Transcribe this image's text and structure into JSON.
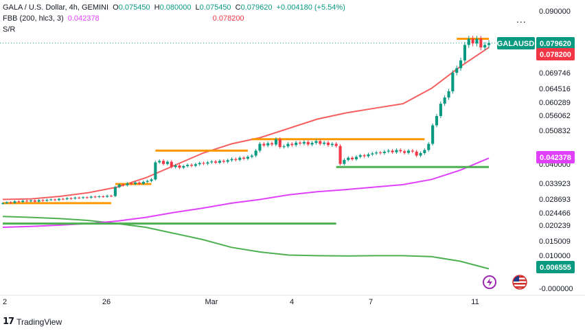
{
  "legend": {
    "line1": {
      "symbol": "GALA / U.S. Dollar, 4h, GEMINI",
      "o_label": "O",
      "o": "0.075450",
      "h_label": "H",
      "h": "0.080000",
      "l_label": "L",
      "l": "0.075450",
      "c_label": "C",
      "c": "0.079620",
      "change": "+0.004180 (+5.54%)"
    },
    "line2": {
      "name": "FBB (200, hlc3, 3)",
      "value1": "0.042378",
      "value2": "0.078200"
    },
    "line3": {
      "name": "S/R"
    }
  },
  "more_label": "...",
  "footer": {
    "logo": "17",
    "brand": "TradingView"
  },
  "colors": {
    "up": "#089981",
    "down": "#f23645",
    "sr_orange": "#ff9800",
    "sr_green": "#4caf50",
    "band_red": "#f55f5f",
    "band_pink": "#e040fb",
    "band_green": "#4caf50"
  },
  "chart_data": {
    "type": "candlestick",
    "symbol": "GALAUSD",
    "x_ticks": [
      "2",
      "26",
      "Mar",
      "4",
      "7",
      "11"
    ],
    "y_ticks": [
      "0.090000",
      "0.079620",
      "0.078200",
      "0.069746",
      "0.064516",
      "0.060289",
      "0.056062",
      "0.050832",
      "0.042378",
      "0.040000",
      "0.033923",
      "0.028693",
      "0.024466",
      "0.020239",
      "0.015009",
      "0.010000",
      "0.006555",
      "-0.000000"
    ],
    "ylim": [
      -0.002,
      0.092
    ],
    "price_labels": [
      {
        "text": "GALAUSD",
        "value": "0.079620",
        "price": 0.07962,
        "color": "#089981"
      },
      {
        "text": "",
        "value": "0.078200",
        "price": 0.0782,
        "color": "#f23645"
      },
      {
        "text": "",
        "value": "0.042378",
        "price": 0.042378,
        "color": "#e040fb"
      },
      {
        "text": "",
        "value": "0.006555",
        "price": 0.006555,
        "color": "#089981"
      }
    ],
    "candles_close": [
      0.0278,
      0.0281,
      0.0279,
      0.0284,
      0.0282,
      0.0286,
      0.0284,
      0.0287,
      0.0283,
      0.0288,
      0.0286,
      0.0289,
      0.029,
      0.0288,
      0.0292,
      0.0291,
      0.0294,
      0.0293,
      0.0296,
      0.0295,
      0.0297,
      0.0296,
      0.0299,
      0.0298,
      0.03,
      0.0299,
      0.0302,
      0.0301,
      0.033,
      0.0338,
      0.0336,
      0.0342,
      0.034,
      0.0345,
      0.0341,
      0.0347,
      0.035,
      0.0355,
      0.041,
      0.0415,
      0.0405,
      0.0412,
      0.0395,
      0.04,
      0.0393,
      0.0398,
      0.0402,
      0.0399,
      0.0404,
      0.0408,
      0.0406,
      0.041,
      0.0413,
      0.0409,
      0.0415,
      0.0412,
      0.0417,
      0.0421,
      0.0418,
      0.0425,
      0.0422,
      0.0428,
      0.0432,
      0.0448,
      0.047,
      0.0465,
      0.0472,
      0.0468,
      0.0485,
      0.046,
      0.0462,
      0.047,
      0.0466,
      0.0474,
      0.0471,
      0.0476,
      0.0468,
      0.0473,
      0.0479,
      0.047,
      0.0474,
      0.0466,
      0.047,
      0.0463,
      0.0405,
      0.0418,
      0.0425,
      0.042,
      0.0428,
      0.0433,
      0.043,
      0.0436,
      0.0439,
      0.0442,
      0.044,
      0.0445,
      0.0448,
      0.0443,
      0.045,
      0.0446,
      0.0441,
      0.0448,
      0.0445,
      0.0432,
      0.044,
      0.045,
      0.047,
      0.053,
      0.056,
      0.06,
      0.062,
      0.064,
      0.07,
      0.0715,
      0.074,
      0.079,
      0.081,
      0.0795,
      0.081,
      0.0782,
      0.079,
      0.0796
    ],
    "sr_levels": [
      {
        "color": "#ff9800",
        "price": 0.0278,
        "from": 0,
        "to": 27
      },
      {
        "color": "#ff9800",
        "price": 0.034,
        "from": 28,
        "to": 37
      },
      {
        "color": "#ff9800",
        "price": 0.0448,
        "from": 38,
        "to": 61
      },
      {
        "color": "#ff9800",
        "price": 0.0485,
        "from": 62,
        "to": 105
      },
      {
        "color": "#4caf50",
        "price": 0.0395,
        "from": 83,
        "to": 121
      },
      {
        "color": "#4caf50",
        "price": 0.0212,
        "from": 0,
        "to": 83
      },
      {
        "color": "#ff9800",
        "price": 0.081,
        "from": 113,
        "to": 121
      }
    ],
    "band_upper": [
      0.029,
      0.0292,
      0.03,
      0.0312,
      0.033,
      0.036,
      0.04,
      0.044,
      0.047,
      0.049,
      0.052,
      0.055,
      0.057,
      0.0585,
      0.06,
      0.065,
      0.072,
      0.0782
    ],
    "band_basis": [
      0.02,
      0.0203,
      0.0207,
      0.0212,
      0.022,
      0.0232,
      0.0248,
      0.0262,
      0.0278,
      0.029,
      0.0305,
      0.0315,
      0.0322,
      0.033,
      0.0338,
      0.0355,
      0.0385,
      0.042378
    ],
    "band_lower": [
      0.0235,
      0.0232,
      0.0228,
      0.0222,
      0.0212,
      0.02,
      0.018,
      0.016,
      0.0135,
      0.012,
      0.011,
      0.0108,
      0.0107,
      0.0108,
      0.0108,
      0.0105,
      0.009,
      0.006555
    ]
  }
}
